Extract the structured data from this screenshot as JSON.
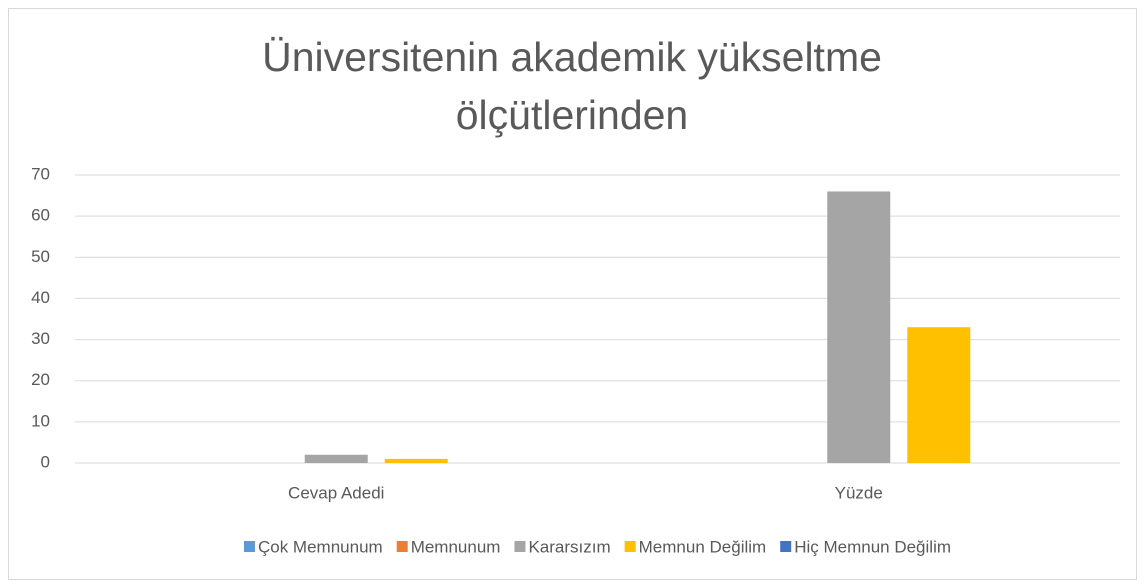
{
  "chart_data": {
    "type": "bar",
    "title": "Üniversitenin akademik yükseltme ölçütlerinden",
    "categories": [
      "Cevap Adedi",
      "Yüzde"
    ],
    "series": [
      {
        "name": "Çok Memnunum",
        "color": "#5b9bd5",
        "values": [
          0,
          0
        ]
      },
      {
        "name": "Memnunum",
        "color": "#ed7d31",
        "values": [
          0,
          0
        ]
      },
      {
        "name": "Kararsızım",
        "color": "#a5a5a5",
        "values": [
          2,
          66
        ]
      },
      {
        "name": "Memnun Değilim",
        "color": "#ffc000",
        "values": [
          1,
          33
        ]
      },
      {
        "name": "Hiç Memnun Değilim",
        "color": "#4472c4",
        "values": [
          0,
          0
        ]
      }
    ],
    "ylim": [
      0,
      70
    ],
    "yticks": [
      0,
      10,
      20,
      30,
      40,
      50,
      60,
      70
    ],
    "grid": true,
    "legend": "bottom"
  }
}
